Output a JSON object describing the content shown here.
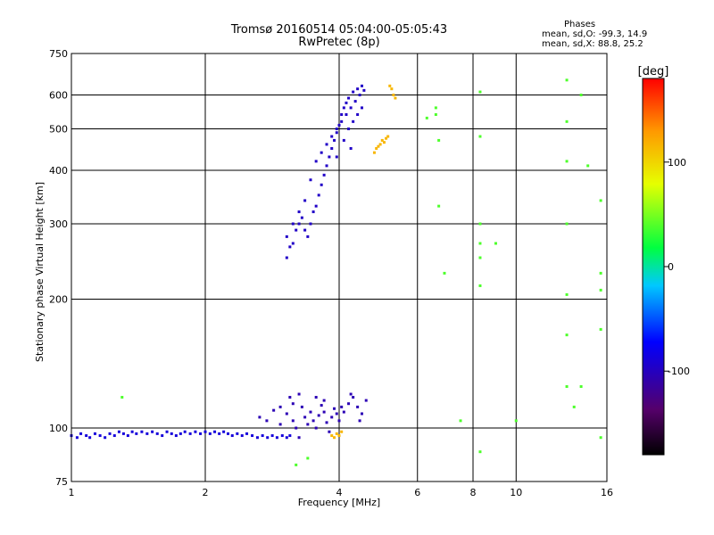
{
  "header": {
    "title_line1": "Tromsø 20160514 05:04:00-05:05:43",
    "title_line2": "RwPretec (8p)"
  },
  "phase_box": {
    "title": "Phases",
    "line1": "mean, sd,O: -99.3, 14.9",
    "line2": "mean, sd,X:  88.8, 25.2"
  },
  "chart_data": {
    "type": "scatter",
    "xlabel": "Frequency [MHz]",
    "ylabel": "Stationary phase Virtual Height [km]",
    "xscale": "log",
    "yscale": "log",
    "xlim": [
      1,
      16
    ],
    "ylim": [
      75,
      750
    ],
    "x_ticks": [
      1,
      2,
      4,
      6,
      8,
      10,
      16
    ],
    "y_ticks": [
      75,
      100,
      200,
      300,
      400,
      500,
      600,
      750
    ],
    "grid": true,
    "colorbar": {
      "label": "[deg]",
      "range": [
        -180,
        180
      ],
      "ticks": [
        100,
        0,
        -100
      ]
    },
    "series": [
      {
        "values": [
          [
            1.0,
            96
          ],
          [
            1.03,
            95
          ],
          [
            1.05,
            97
          ],
          [
            1.08,
            96
          ],
          [
            1.1,
            95
          ],
          [
            1.13,
            97
          ],
          [
            1.16,
            96
          ],
          [
            1.19,
            95
          ],
          [
            1.22,
            97
          ],
          [
            1.25,
            96
          ],
          [
            1.28,
            98
          ],
          [
            1.31,
            97
          ],
          [
            1.34,
            96
          ],
          [
            1.37,
            98
          ],
          [
            1.4,
            97
          ],
          [
            1.44,
            98
          ],
          [
            1.48,
            97
          ],
          [
            1.52,
            98
          ],
          [
            1.56,
            97
          ],
          [
            1.6,
            96
          ],
          [
            1.64,
            98
          ],
          [
            1.68,
            97
          ],
          [
            1.72,
            96
          ],
          [
            1.76,
            97
          ],
          [
            1.8,
            98
          ],
          [
            1.85,
            97
          ],
          [
            1.9,
            98
          ],
          [
            1.95,
            97
          ],
          [
            2.0,
            98
          ],
          [
            2.05,
            97
          ],
          [
            2.1,
            98
          ],
          [
            2.15,
            97
          ],
          [
            2.2,
            98
          ],
          [
            2.25,
            97
          ],
          [
            2.3,
            96
          ],
          [
            2.36,
            97
          ],
          [
            2.42,
            96
          ],
          [
            2.48,
            97
          ],
          [
            2.55,
            96
          ],
          [
            2.62,
            95
          ],
          [
            2.69,
            96
          ],
          [
            2.76,
            95
          ],
          [
            2.83,
            96
          ],
          [
            2.9,
            95
          ],
          [
            2.98,
            96
          ],
          [
            3.05,
            95
          ],
          [
            3.1,
            96
          ]
        ],
        "phase": -110
      },
      {
        "values": [
          [
            2.65,
            106
          ],
          [
            2.75,
            104
          ],
          [
            2.85,
            110
          ],
          [
            2.95,
            112
          ],
          [
            3.05,
            108
          ],
          [
            3.15,
            104
          ],
          [
            3.2,
            100
          ],
          [
            3.25,
            95
          ],
          [
            3.3,
            112
          ],
          [
            3.35,
            106
          ],
          [
            3.4,
            102
          ],
          [
            3.45,
            109
          ],
          [
            3.5,
            104
          ],
          [
            3.55,
            100
          ],
          [
            3.6,
            107
          ],
          [
            3.65,
            113
          ],
          [
            3.7,
            109
          ],
          [
            3.75,
            103
          ],
          [
            3.8,
            98
          ],
          [
            3.85,
            106
          ],
          [
            3.9,
            111
          ],
          [
            3.95,
            108
          ],
          [
            4.0,
            104
          ],
          [
            4.05,
            112
          ],
          [
            4.1,
            109
          ],
          [
            4.2,
            114
          ],
          [
            4.3,
            118
          ],
          [
            4.4,
            112
          ],
          [
            4.5,
            108
          ],
          [
            4.6,
            116
          ],
          [
            3.1,
            118
          ],
          [
            3.25,
            120
          ],
          [
            3.55,
            118
          ],
          [
            3.7,
            116
          ],
          [
            4.25,
            120
          ],
          [
            4.45,
            104
          ],
          [
            2.95,
            102
          ],
          [
            3.15,
            114
          ]
        ],
        "phase": -120
      },
      {
        "values": [
          [
            3.05,
            250
          ],
          [
            3.1,
            265
          ],
          [
            3.15,
            270
          ],
          [
            3.2,
            290
          ],
          [
            3.25,
            300
          ],
          [
            3.3,
            310
          ],
          [
            3.35,
            290
          ],
          [
            3.4,
            280
          ],
          [
            3.45,
            300
          ],
          [
            3.5,
            320
          ],
          [
            3.55,
            330
          ],
          [
            3.6,
            350
          ],
          [
            3.65,
            370
          ],
          [
            3.7,
            390
          ],
          [
            3.75,
            410
          ],
          [
            3.8,
            430
          ],
          [
            3.85,
            450
          ],
          [
            3.9,
            470
          ],
          [
            3.95,
            490
          ],
          [
            4.0,
            510
          ],
          [
            4.05,
            540
          ],
          [
            4.1,
            560
          ],
          [
            4.15,
            575
          ],
          [
            4.2,
            590
          ],
          [
            4.3,
            610
          ],
          [
            4.4,
            620
          ],
          [
            4.5,
            630
          ],
          [
            4.55,
            615
          ],
          [
            4.45,
            600
          ],
          [
            4.35,
            580
          ],
          [
            4.25,
            560
          ],
          [
            4.15,
            540
          ],
          [
            4.05,
            520
          ],
          [
            3.95,
            500
          ],
          [
            3.85,
            480
          ],
          [
            3.75,
            460
          ],
          [
            3.65,
            440
          ],
          [
            3.55,
            420
          ],
          [
            3.45,
            380
          ],
          [
            3.35,
            340
          ],
          [
            3.25,
            320
          ],
          [
            3.15,
            300
          ],
          [
            3.05,
            280
          ],
          [
            3.95,
            430
          ],
          [
            4.1,
            470
          ],
          [
            4.2,
            500
          ],
          [
            4.3,
            520
          ],
          [
            4.4,
            540
          ],
          [
            4.5,
            560
          ],
          [
            4.25,
            450
          ]
        ],
        "phase": -115
      },
      {
        "values": [
          [
            4.8,
            440
          ],
          [
            4.85,
            450
          ],
          [
            4.9,
            455
          ],
          [
            4.95,
            460
          ],
          [
            5.0,
            470
          ],
          [
            5.05,
            465
          ],
          [
            5.1,
            475
          ],
          [
            5.15,
            480
          ],
          [
            5.2,
            630
          ],
          [
            5.25,
            620
          ],
          [
            5.3,
            600
          ],
          [
            5.35,
            590
          ],
          [
            3.85,
            96
          ],
          [
            3.9,
            95
          ],
          [
            3.95,
            97
          ],
          [
            4.0,
            96
          ],
          [
            4.05,
            98
          ]
        ],
        "phase": 110
      },
      {
        "values": [
          [
            1.3,
            118
          ],
          [
            6.3,
            530
          ],
          [
            6.6,
            560
          ],
          [
            6.7,
            470
          ],
          [
            6.7,
            330
          ],
          [
            6.9,
            230
          ],
          [
            8.3,
            610
          ],
          [
            8.3,
            480
          ],
          [
            8.3,
            300
          ],
          [
            8.3,
            270
          ],
          [
            8.3,
            215
          ],
          [
            8.3,
            88
          ],
          [
            9.0,
            270
          ],
          [
            10.0,
            104
          ],
          [
            13.0,
            650
          ],
          [
            13.0,
            520
          ],
          [
            13.0,
            420
          ],
          [
            13.0,
            300
          ],
          [
            13.0,
            205
          ],
          [
            13.0,
            165
          ],
          [
            13.0,
            125
          ],
          [
            14.0,
            600
          ],
          [
            14.5,
            410
          ],
          [
            14.0,
            125
          ],
          [
            13.5,
            112
          ],
          [
            15.5,
            340
          ],
          [
            15.5,
            230
          ],
          [
            15.5,
            210
          ],
          [
            15.5,
            170
          ],
          [
            15.5,
            95
          ],
          [
            7.5,
            104
          ],
          [
            3.4,
            85
          ],
          [
            3.2,
            82
          ],
          [
            6.6,
            540
          ],
          [
            8.3,
            250
          ]
        ],
        "phase": 20
      }
    ]
  }
}
